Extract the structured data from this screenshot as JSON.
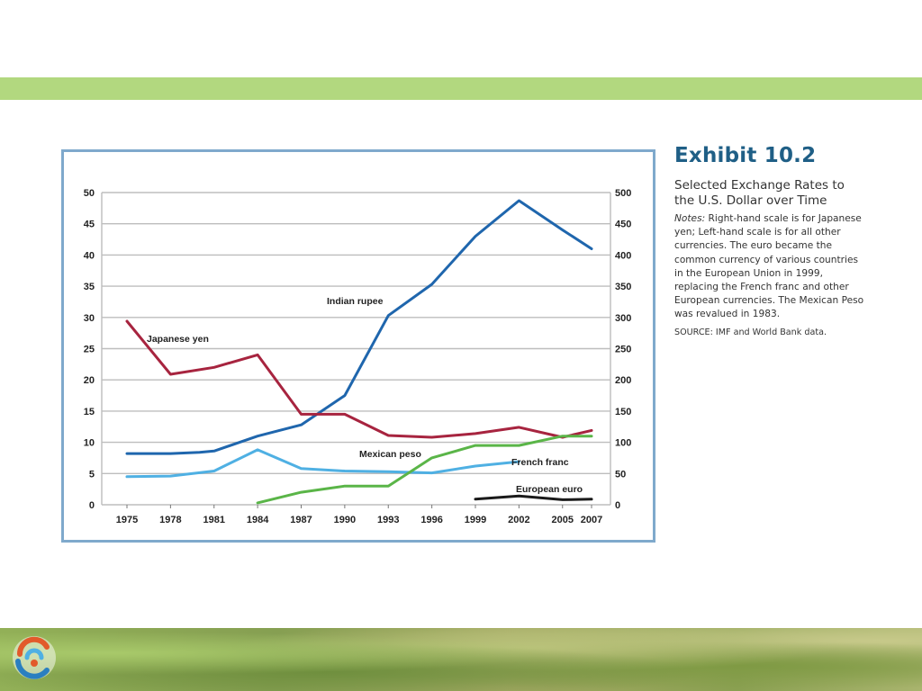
{
  "exhibit": {
    "title": "Exhibit 10.2",
    "subtitle": "Selected Exchange Rates to the U.S. Dollar over Time",
    "notes_label": "Notes:",
    "notes_text": "Right-hand scale is for Japanese yen; Left-hand scale is for all other currencies. The euro became the common currency of various countries in the European Union in 1999, replacing the French franc and other European currencies. The Mexican Peso was revalued in 1983.",
    "source": "SOURCE: IMF and World Bank data."
  },
  "colors": {
    "top_band": "#b2d87f",
    "frame": "#7fa9cc",
    "grid": "#bdbdbd",
    "title": "#1f5f86"
  },
  "icons": {
    "logo": "circular-swirl-logo-icon"
  },
  "chart_data": {
    "type": "line",
    "title": "Exhibit 10.2",
    "x_ticks": [
      "1975",
      "1978",
      "1981",
      "1984",
      "1987",
      "1990",
      "1993",
      "1996",
      "1999",
      "2002",
      "2005",
      "2007"
    ],
    "xlim": [
      1974,
      2008
    ],
    "y_left": {
      "ticks": [
        0,
        5,
        10,
        15,
        20,
        25,
        30,
        35,
        40,
        45,
        50
      ],
      "ylim": [
        0,
        50
      ]
    },
    "y_right": {
      "ticks": [
        0,
        50,
        100,
        150,
        200,
        250,
        300,
        350,
        400,
        450,
        500
      ],
      "ylim": [
        0,
        500
      ]
    },
    "grid": true,
    "series": [
      {
        "name": "Indian rupee",
        "label": "Indian rupee",
        "axis": "left",
        "color": "#1f66ad",
        "x": [
          1975,
          1978,
          1980,
          1981,
          1984,
          1987,
          1990,
          1993,
          1996,
          1999,
          2002,
          2005,
          2007
        ],
        "y": [
          8.2,
          8.2,
          8.4,
          8.6,
          11.0,
          12.8,
          17.5,
          30.3,
          35.3,
          43.0,
          48.7,
          44.0,
          41.0
        ]
      },
      {
        "name": "Japanese yen",
        "label": "Japanese yen",
        "axis": "right",
        "color": "#a7243f",
        "x": [
          1975,
          1978,
          1981,
          1984,
          1987,
          1990,
          1993,
          1996,
          1999,
          2002,
          2005,
          2007
        ],
        "y": [
          294,
          209,
          220,
          240,
          145,
          145,
          111,
          108,
          114,
          124,
          108,
          119
        ]
      },
      {
        "name": "Mexican peso",
        "label": "Mexican peso",
        "axis": "left",
        "color": "#4fb0e3",
        "x": [
          1975,
          1978,
          1981,
          1984,
          1987,
          1990,
          1993,
          1996,
          1999,
          2002
        ],
        "y": [
          4.5,
          4.6,
          5.4,
          8.8,
          5.8,
          5.4,
          5.3,
          5.1,
          6.2,
          6.9
        ]
      },
      {
        "name": "French franc",
        "label": "French franc",
        "axis": "left",
        "color": "#5ab548",
        "x": [
          1984,
          1987,
          1990,
          1993,
          1996,
          1999,
          2002,
          2005,
          2007
        ],
        "y": [
          0.3,
          2.0,
          3.0,
          3.0,
          7.5,
          9.5,
          9.5,
          11.0,
          11.0
        ]
      },
      {
        "name": "European euro",
        "label": "European euro",
        "axis": "left",
        "color": "#1a1a1a",
        "x": [
          1999,
          2002,
          2005,
          2007
        ],
        "y": [
          0.9,
          1.4,
          0.8,
          0.9
        ]
      }
    ]
  }
}
